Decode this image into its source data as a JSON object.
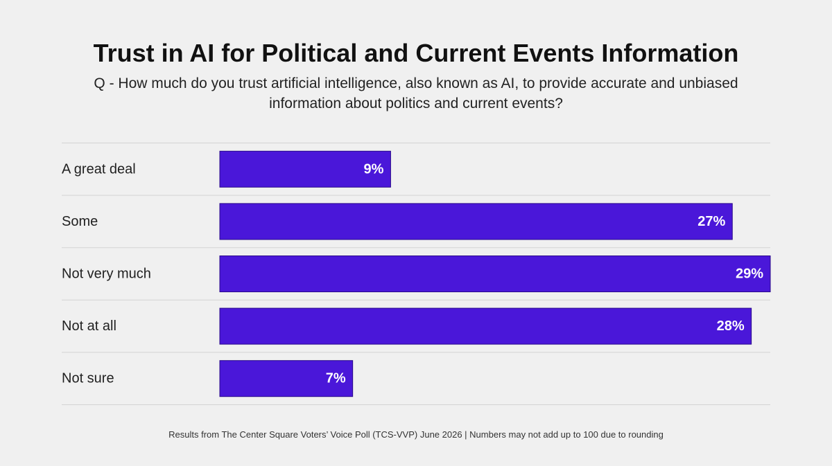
{
  "title": "Trust in AI for Political and Current Events Information",
  "subtitle": "Q - How much do you trust artificial intelligence, also known as AI, to provide accurate and unbiased information about politics and current events?",
  "footnote": "Results from The Center Square Voters’ Voice Poll (TCS-VVP) June 2026 | Numbers may not add up to 100 due to rounding",
  "colors": {
    "bar": "#4a17d9",
    "bar_label": "#ffffff",
    "divider": "#d3d3d3",
    "category_label": "#1f1f1f"
  },
  "chart_data": {
    "type": "bar",
    "orientation": "horizontal",
    "categories": [
      "A great deal",
      "Some",
      "Not very much",
      "Not at all",
      "Not sure"
    ],
    "values": [
      9,
      27,
      29,
      28,
      7
    ],
    "value_labels": [
      "9%",
      "27%",
      "29%",
      "28%",
      "7%"
    ],
    "unit": "%",
    "xlim": [
      0,
      29
    ],
    "grid": false,
    "legend": "none"
  }
}
